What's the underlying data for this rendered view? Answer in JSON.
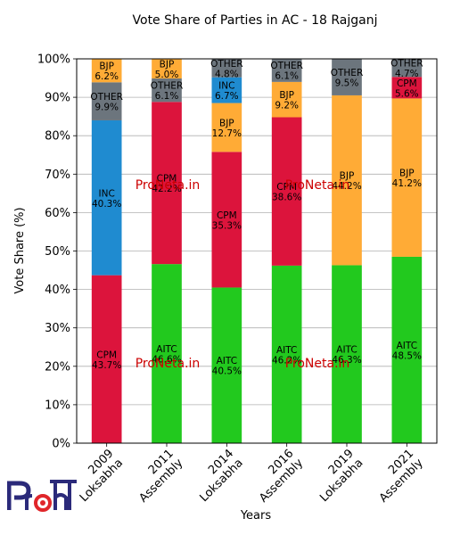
{
  "chart_data": {
    "type": "bar",
    "stacked": true,
    "title": "Vote Share of Parties in AC - 18 Rajganj",
    "xlabel": "Years",
    "ylabel": "Vote Share (%)",
    "ylim": [
      0,
      100
    ],
    "yticks": [
      "0%",
      "10%",
      "20%",
      "30%",
      "40%",
      "50%",
      "60%",
      "70%",
      "80%",
      "90%",
      "100%"
    ],
    "grid": "horizontal",
    "categories": [
      {
        "line1": "2009",
        "line2": "Loksabha"
      },
      {
        "line1": "2011",
        "line2": "Assembly"
      },
      {
        "line1": "2014",
        "line2": "Loksabha"
      },
      {
        "line1": "2016",
        "line2": "Assembly"
      },
      {
        "line1": "2019",
        "line2": "Loksabha"
      },
      {
        "line1": "2021",
        "line2": "Assembly"
      }
    ],
    "party_colors": {
      "AITC": "#22c91e",
      "CPM": "#dc143c",
      "INC": "#1f8bd0",
      "BJP": "#ffab36",
      "OTHER": "#6c757d"
    },
    "stacks": [
      [
        {
          "party": "CPM",
          "value": 43.7,
          "label": "43.7%"
        },
        {
          "party": "INC",
          "value": 40.3,
          "label": "40.3%"
        },
        {
          "party": "OTHER",
          "value": 9.9,
          "label": "9.9%"
        },
        {
          "party": "BJP",
          "value": 6.2,
          "label": "6.2%"
        }
      ],
      [
        {
          "party": "AITC",
          "value": 46.6,
          "label": "46.6%"
        },
        {
          "party": "CPM",
          "value": 42.2,
          "label": "42.2%"
        },
        {
          "party": "OTHER",
          "value": 6.1,
          "label": "6.1%"
        },
        {
          "party": "BJP",
          "value": 5.0,
          "label": "5.0%"
        }
      ],
      [
        {
          "party": "AITC",
          "value": 40.5,
          "label": "40.5%"
        },
        {
          "party": "CPM",
          "value": 35.3,
          "label": "35.3%"
        },
        {
          "party": "BJP",
          "value": 12.7,
          "label": "12.7%"
        },
        {
          "party": "INC",
          "value": 6.7,
          "label": "6.7%"
        },
        {
          "party": "OTHER",
          "value": 4.8,
          "label": "4.8%"
        }
      ],
      [
        {
          "party": "AITC",
          "value": 46.2,
          "label": "46.2%"
        },
        {
          "party": "CPM",
          "value": 38.6,
          "label": "38.6%"
        },
        {
          "party": "BJP",
          "value": 9.2,
          "label": "9.2%"
        },
        {
          "party": "OTHER",
          "value": 6.1,
          "label": "6.1%"
        }
      ],
      [
        {
          "party": "AITC",
          "value": 46.3,
          "label": "46.3%"
        },
        {
          "party": "BJP",
          "value": 44.2,
          "label": "44.2%"
        },
        {
          "party": "OTHER",
          "value": 9.5,
          "label": "9.5%"
        }
      ],
      [
        {
          "party": "AITC",
          "value": 48.5,
          "label": "48.5%"
        },
        {
          "party": "BJP",
          "value": 41.2,
          "label": "41.2%"
        },
        {
          "party": "CPM",
          "value": 5.6,
          "label": "5.6%"
        },
        {
          "party": "OTHER",
          "value": 4.7,
          "label": "4.7%"
        }
      ]
    ]
  },
  "watermarks": [
    "ProNeta.in",
    "ProNeta.in",
    "ProNeta.in",
    "ProNeta.in"
  ],
  "watermark_color": "#cc0000",
  "logo": {
    "text": "ProNeta",
    "color_main": "#2b2a7a",
    "color_accent": "#e0262a"
  }
}
